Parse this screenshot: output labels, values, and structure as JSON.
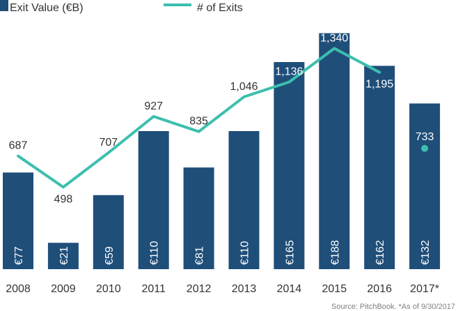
{
  "chart_data": {
    "type": "bar",
    "categories": [
      "2008",
      "2009",
      "2010",
      "2011",
      "2012",
      "2013",
      "2014",
      "2015",
      "2016",
      "2017*"
    ],
    "series": [
      {
        "name": "Exit Value (€B)",
        "type": "bar",
        "values": [
          77,
          21,
          59,
          110,
          81,
          110,
          165,
          188,
          162,
          132
        ],
        "labels": [
          "€77",
          "€21",
          "€59",
          "€110",
          "€81",
          "€110",
          "€165",
          "€188",
          "€162",
          "€132"
        ],
        "color": "#1f4e79"
      },
      {
        "name": "# of Exits",
        "type": "line",
        "values": [
          687,
          498,
          707,
          927,
          835,
          1046,
          1136,
          1340,
          1195,
          733
        ],
        "labels": [
          "687",
          "498",
          "707",
          "927",
          "835",
          "1,046",
          "1,136",
          "1,340",
          "1,195",
          "733"
        ],
        "color": "#3cbfae",
        "last_point_marker_only": true
      }
    ],
    "bar_ylim": [
      0,
      210
    ],
    "line_ylim": [
      0,
      1600
    ],
    "grid": false,
    "legend_position": "top-left",
    "source_note": "Source: PitchBook. *As of 9/30/2017"
  }
}
